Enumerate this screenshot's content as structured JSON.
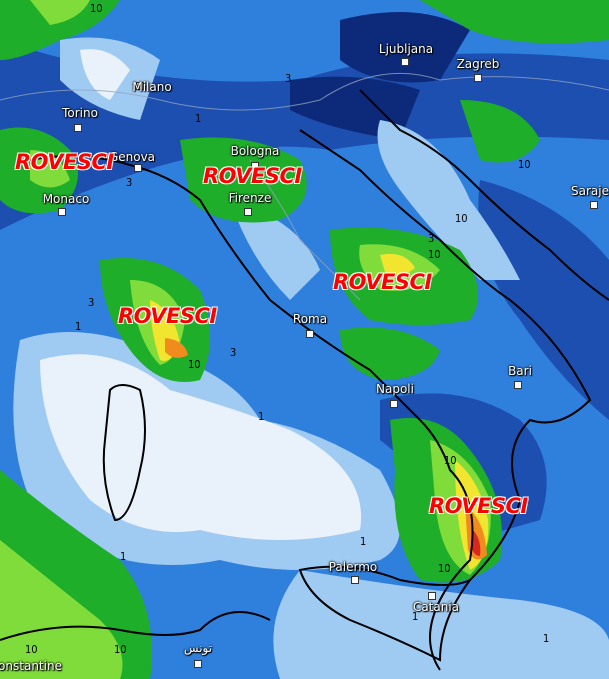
{
  "map": {
    "type": "precipitation forecast map",
    "colors": {
      "very_light": "#e9f1fa",
      "light_blue": "#9fcaf2",
      "mid_blue": "#2f7fdc",
      "dark_blue": "#1d4fb0",
      "navy": "#0d2a7a",
      "green": "#1fae2a",
      "light_green": "#7fdc3a",
      "yellow": "#f2e530",
      "orange": "#f08c1e",
      "red": "#d8281e"
    },
    "cities": [
      {
        "name": "Milano"
      },
      {
        "name": "Torino"
      },
      {
        "name": "Genova"
      },
      {
        "name": "Monaco"
      },
      {
        "name": "Bologna"
      },
      {
        "name": "Firenze"
      },
      {
        "name": "Roma"
      },
      {
        "name": "Napoli"
      },
      {
        "name": "Bari"
      },
      {
        "name": "Palermo"
      },
      {
        "name": "Catania"
      },
      {
        "name": "Ljubljana"
      },
      {
        "name": "Zagreb"
      },
      {
        "name": "Saraje"
      },
      {
        "name": "onstantine"
      },
      {
        "name": "تونس"
      }
    ],
    "annotations": [
      "ROVESCI",
      "ROVESCI",
      "ROVESCI",
      "ROVESCI",
      "ROVESCI"
    ],
    "contour_labels": [
      "10",
      "3",
      "1",
      "3",
      "10",
      "1",
      "3",
      "10",
      "3",
      "10",
      "1",
      "10",
      "1",
      "10",
      "10",
      "1",
      "1",
      "10",
      "10",
      "3",
      "1"
    ]
  }
}
